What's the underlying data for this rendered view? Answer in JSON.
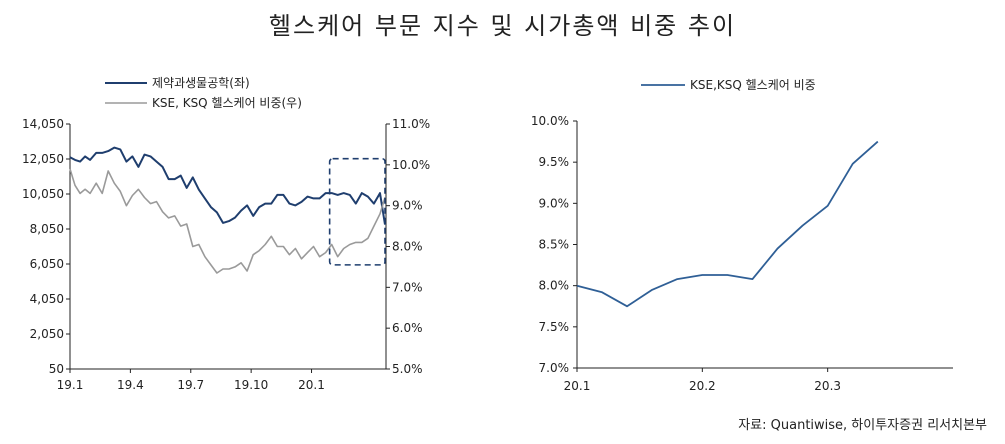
{
  "title": "헬스케어 부문 지수 및 시가총액 비중 추이",
  "source": "자료: Quantiwise, 하이투자증권 리서치본부",
  "colors": {
    "navy": "#1f3e6e",
    "gray": "#9a9a9a",
    "blue": "#2f5f96"
  },
  "chart_data": [
    {
      "type": "line",
      "title": "",
      "xlabel": "",
      "ylabel": "",
      "x_ticks": [
        "19.1",
        "19.4",
        "19.7",
        "19.10",
        "20.1"
      ],
      "y_left_ticks": [
        "14,050",
        "12,050",
        "10,050",
        "8,050",
        "6,050",
        "4,050",
        "2,050",
        "50"
      ],
      "y_left_lim": [
        50,
        14050
      ],
      "y_right_ticks": [
        "11.0%",
        "10.0%",
        "9.0%",
        "8.0%",
        "7.0%",
        "6.0%",
        "5.0%"
      ],
      "y_right_lim": [
        5.0,
        11.0
      ],
      "x_range": [
        0,
        15.7
      ],
      "highlight_box": {
        "x0": 12.9,
        "x1": 15.65,
        "y0_right": 7.55,
        "y1_right": 10.15,
        "style": "dashed"
      },
      "legend": [
        "제약과생물공학(좌)",
        "KSE, KSQ 헬스케어 비중(우)"
      ],
      "series": [
        {
          "name": "제약과생물공학(좌)",
          "axis": "left",
          "color": "#1f3e6e",
          "x": [
            0,
            0.25,
            0.5,
            0.75,
            1.0,
            1.3,
            1.6,
            1.9,
            2.2,
            2.5,
            2.8,
            3.1,
            3.4,
            3.7,
            4.0,
            4.3,
            4.6,
            4.9,
            5.2,
            5.5,
            5.8,
            6.1,
            6.4,
            6.7,
            7.0,
            7.3,
            7.6,
            7.9,
            8.2,
            8.5,
            8.8,
            9.1,
            9.4,
            9.7,
            10.0,
            10.3,
            10.6,
            10.9,
            11.2,
            11.5,
            11.8,
            12.1,
            12.4,
            12.7,
            13.0,
            13.3,
            13.6,
            13.9,
            14.2,
            14.5,
            14.8,
            15.1,
            15.4,
            15.65
          ],
          "values": [
            12150,
            12000,
            11900,
            12200,
            12000,
            12400,
            12400,
            12500,
            12700,
            12600,
            11900,
            12200,
            11600,
            12300,
            12200,
            11900,
            11600,
            10900,
            10900,
            11100,
            10400,
            11000,
            10300,
            9800,
            9300,
            9000,
            8400,
            8500,
            8700,
            9100,
            9400,
            8800,
            9300,
            9500,
            9500,
            10000,
            10000,
            9500,
            9400,
            9600,
            9900,
            9800,
            9800,
            10100,
            10100,
            10000,
            10100,
            10000,
            9500,
            10100,
            9900,
            9500,
            10100,
            8300
          ]
        },
        {
          "name": "KSE, KSQ 헬스케어 비중(우)",
          "axis": "right",
          "color": "#9a9a9a",
          "x": [
            0,
            0.25,
            0.5,
            0.75,
            1.0,
            1.3,
            1.6,
            1.9,
            2.2,
            2.5,
            2.8,
            3.1,
            3.4,
            3.7,
            4.0,
            4.3,
            4.6,
            4.9,
            5.2,
            5.5,
            5.8,
            6.1,
            6.4,
            6.7,
            7.0,
            7.3,
            7.6,
            7.9,
            8.2,
            8.5,
            8.8,
            9.1,
            9.4,
            9.7,
            10.0,
            10.3,
            10.6,
            10.9,
            11.2,
            11.5,
            11.8,
            12.1,
            12.4,
            12.7,
            13.0,
            13.3,
            13.6,
            13.9,
            14.2,
            14.5,
            14.8,
            15.1,
            15.4,
            15.65
          ],
          "values": [
            9.9,
            9.5,
            9.3,
            9.4,
            9.3,
            9.55,
            9.3,
            9.85,
            9.55,
            9.35,
            9.0,
            9.25,
            9.4,
            9.2,
            9.05,
            9.1,
            8.85,
            8.7,
            8.75,
            8.5,
            8.55,
            8.0,
            8.05,
            7.75,
            7.55,
            7.35,
            7.45,
            7.45,
            7.5,
            7.6,
            7.4,
            7.8,
            7.9,
            8.05,
            8.25,
            8.0,
            8.0,
            7.8,
            7.95,
            7.7,
            7.85,
            8.0,
            7.75,
            7.85,
            8.05,
            7.75,
            7.95,
            8.05,
            8.1,
            8.1,
            8.2,
            8.5,
            8.8,
            9.2
          ]
        }
      ]
    },
    {
      "type": "line",
      "title": "",
      "xlabel": "",
      "ylabel": "",
      "x_ticks": [
        "20.1",
        "20.2",
        "20.3"
      ],
      "y_ticks": [
        "10.0%",
        "9.5%",
        "9.0%",
        "8.5%",
        "8.0%",
        "7.5%",
        "7.0%"
      ],
      "ylim": [
        7.0,
        10.0
      ],
      "x_range": [
        0,
        3.0
      ],
      "legend": [
        "KSE,KSQ 헬스케어 비중"
      ],
      "series": [
        {
          "name": "KSE,KSQ 헬스케어 비중",
          "color": "#2f5f96",
          "x": [
            0,
            0.2,
            0.4,
            0.6,
            0.8,
            1.0,
            1.2,
            1.4,
            1.6,
            1.8,
            2.0,
            2.2,
            2.4,
            2.6,
            2.8
          ],
          "values": [
            8.0,
            7.92,
            7.75,
            7.95,
            8.08,
            8.13,
            8.13,
            8.08,
            8.45,
            8.73,
            8.97,
            9.48,
            9.75,
            null,
            null
          ]
        }
      ]
    }
  ]
}
